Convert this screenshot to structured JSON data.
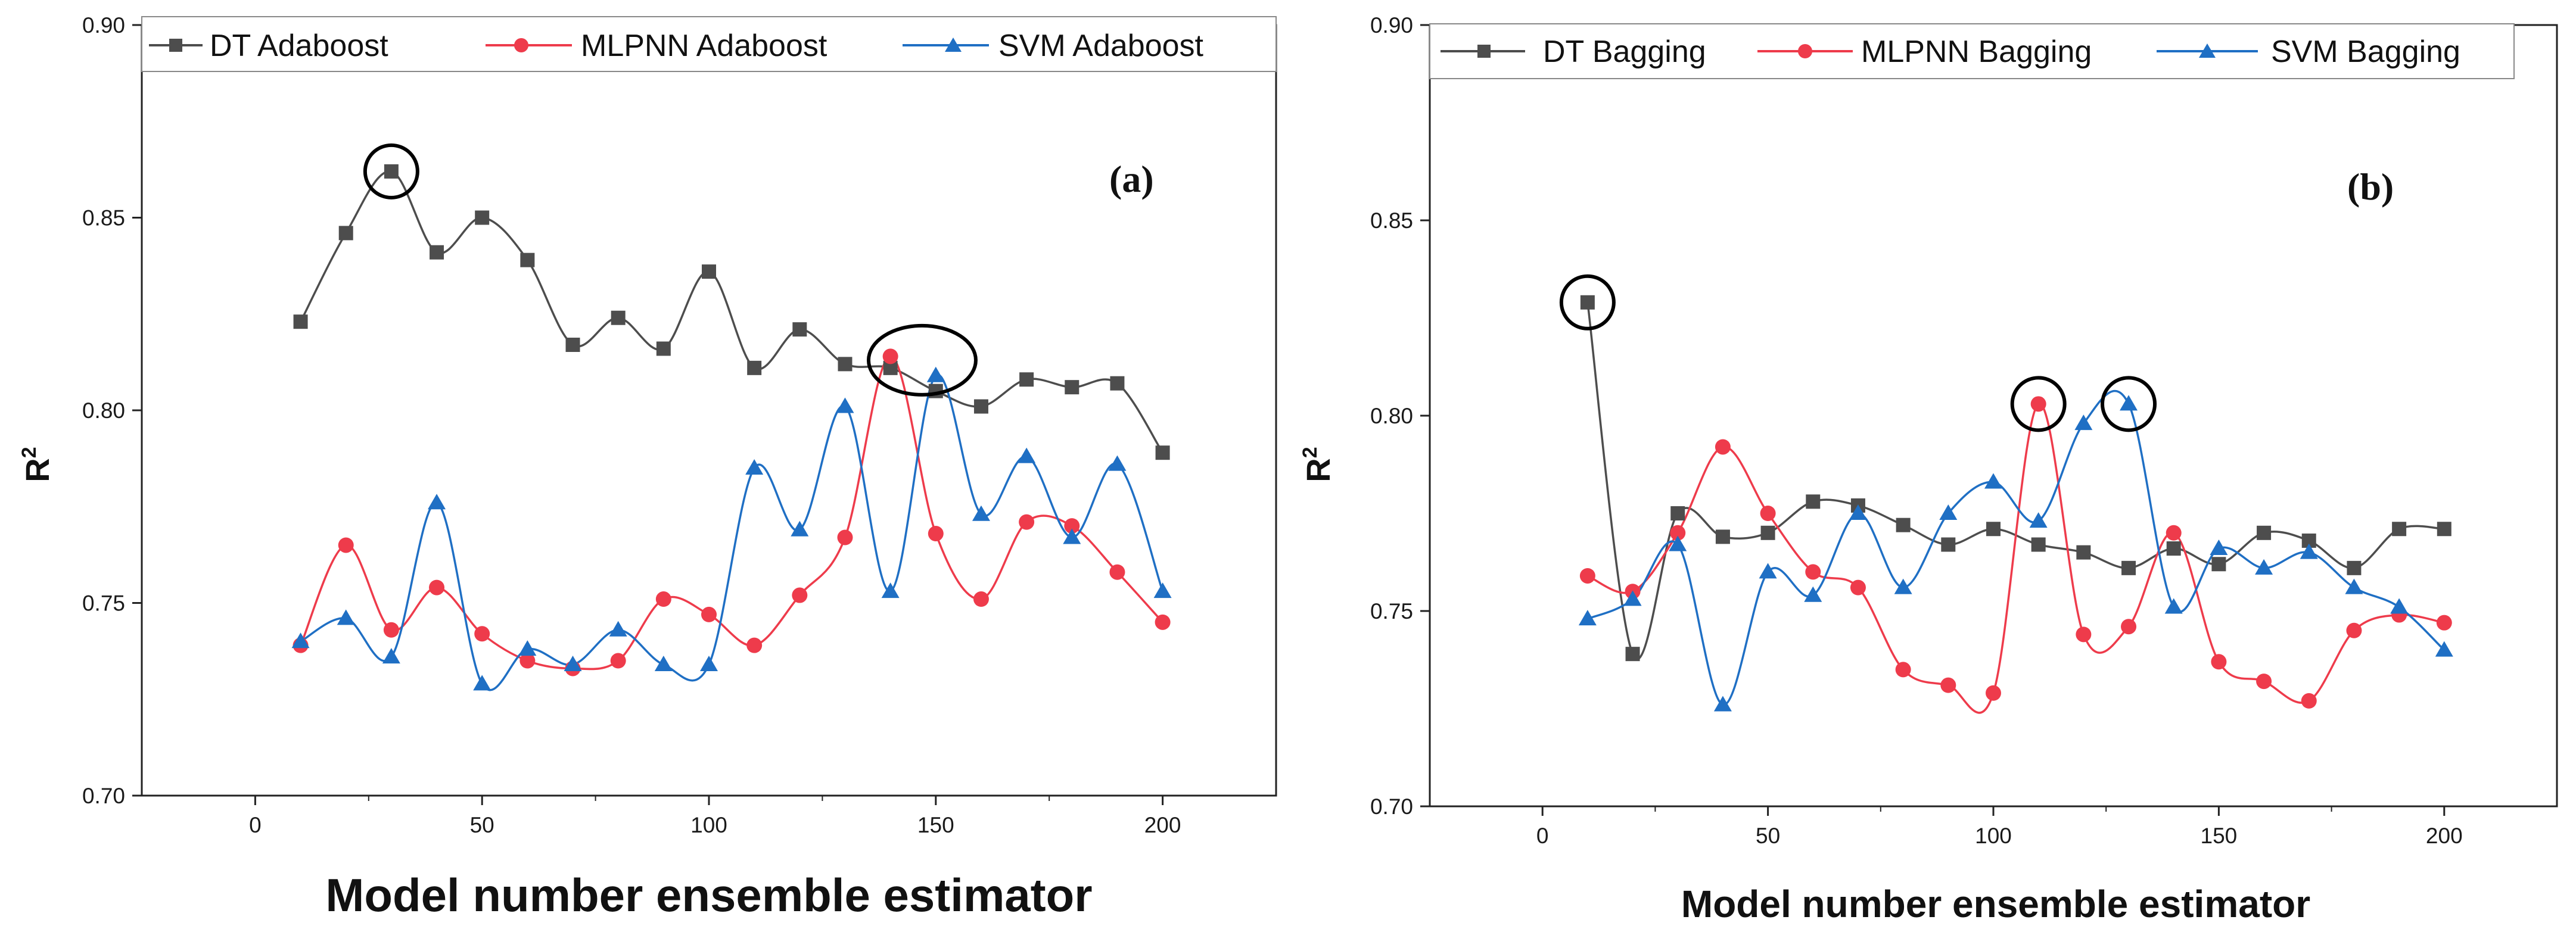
{
  "chart_data": [
    {
      "type": "line",
      "panel_label": "(a)",
      "xlabel": "Model number ensemble estimator",
      "ylabel": "R",
      "ylabel_superscript": "2",
      "xlim": [
        -25,
        225
      ],
      "ylim": [
        0.7,
        0.9
      ],
      "xticks": [
        "0",
        "50",
        "100",
        "150",
        "200"
      ],
      "yticks": [
        "0.70",
        "0.75",
        "0.80",
        "0.85",
        "0.90"
      ],
      "x": [
        10,
        20,
        30,
        40,
        50,
        60,
        70,
        80,
        90,
        100,
        110,
        120,
        130,
        140,
        150,
        160,
        170,
        180,
        190,
        200
      ],
      "series": [
        {
          "name": "DT Adaboost",
          "color": "#4d4d4d",
          "marker": "square",
          "values": [
            0.823,
            0.846,
            0.862,
            0.841,
            0.85,
            0.839,
            0.817,
            0.824,
            0.816,
            0.836,
            0.811,
            0.821,
            0.812,
            0.811,
            0.805,
            0.801,
            0.808,
            0.806,
            0.807,
            0.789
          ]
        },
        {
          "name": "MLPNN Adaboost",
          "color": "#ee3b4b",
          "marker": "circle",
          "values": [
            0.739,
            0.765,
            0.743,
            0.754,
            0.742,
            0.735,
            0.733,
            0.735,
            0.751,
            0.747,
            0.739,
            0.752,
            0.767,
            0.814,
            0.768,
            0.751,
            0.771,
            0.77,
            0.758,
            0.745
          ]
        },
        {
          "name": "SVM Adaboost",
          "color": "#1f6fc4",
          "marker": "triangle",
          "values": [
            0.74,
            0.746,
            0.736,
            0.776,
            0.729,
            0.738,
            0.734,
            0.743,
            0.734,
            0.734,
            0.785,
            0.769,
            0.801,
            0.753,
            0.809,
            0.773,
            0.788,
            0.767,
            0.786,
            0.753
          ]
        }
      ],
      "highlights": [
        {
          "x": 30,
          "y": 0.862,
          "shape": "circle"
        },
        {
          "x": 147,
          "y": 0.813,
          "shape": "ellipse"
        }
      ]
    },
    {
      "type": "line",
      "panel_label": "(b)",
      "xlabel": "Model number ensemble estimator",
      "ylabel": "R",
      "ylabel_superscript": "2",
      "xlim": [
        -25,
        225
      ],
      "ylim": [
        0.7,
        0.9
      ],
      "xticks": [
        "0",
        "50",
        "100",
        "150",
        "200"
      ],
      "yticks": [
        "0.70",
        "0.75",
        "0.80",
        "0.85",
        "0.90"
      ],
      "x": [
        10,
        20,
        30,
        40,
        50,
        60,
        70,
        80,
        90,
        100,
        110,
        120,
        130,
        140,
        150,
        160,
        170,
        180,
        190,
        200
      ],
      "series": [
        {
          "name": "DT Bagging",
          "color": "#4d4d4d",
          "marker": "square",
          "values": [
            0.829,
            0.739,
            0.775,
            0.769,
            0.77,
            0.778,
            0.777,
            0.772,
            0.767,
            0.771,
            0.767,
            0.765,
            0.761,
            0.766,
            0.762,
            0.77,
            0.768,
            0.761,
            0.771,
            0.771
          ]
        },
        {
          "name": "MLPNN Bagging",
          "color": "#ee3b4b",
          "marker": "circle",
          "values": [
            0.759,
            0.755,
            0.77,
            0.792,
            0.775,
            0.76,
            0.756,
            0.735,
            0.731,
            0.729,
            0.803,
            0.744,
            0.746,
            0.77,
            0.737,
            0.732,
            0.727,
            0.745,
            0.749,
            0.747
          ]
        },
        {
          "name": "SVM Bagging",
          "color": "#1f6fc4",
          "marker": "triangle",
          "values": [
            0.748,
            0.753,
            0.767,
            0.726,
            0.76,
            0.754,
            0.775,
            0.756,
            0.775,
            0.783,
            0.773,
            0.798,
            0.803,
            0.751,
            0.766,
            0.761,
            0.765,
            0.756,
            0.751,
            0.74
          ]
        }
      ],
      "highlights": [
        {
          "x": 10,
          "y": 0.829,
          "shape": "circle"
        },
        {
          "x": 110,
          "y": 0.803,
          "shape": "circle"
        },
        {
          "x": 130,
          "y": 0.803,
          "shape": "circle"
        }
      ]
    }
  ]
}
